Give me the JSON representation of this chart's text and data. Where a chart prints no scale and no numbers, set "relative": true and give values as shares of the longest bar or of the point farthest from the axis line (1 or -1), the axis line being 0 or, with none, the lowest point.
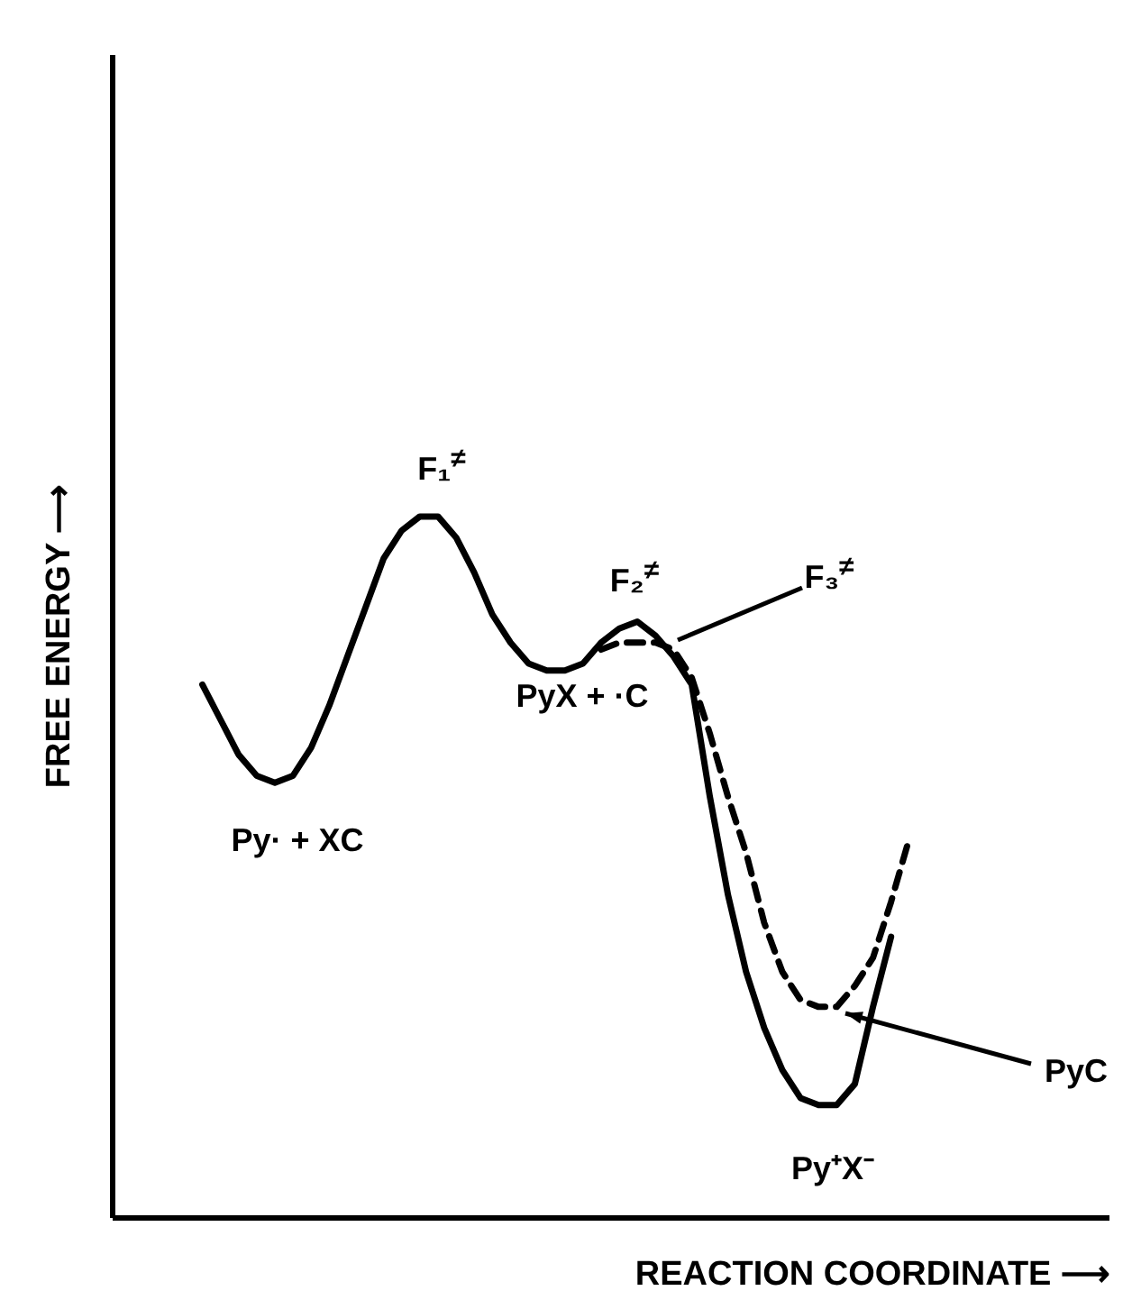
{
  "chart_data": {
    "type": "line",
    "relative": true,
    "xlabel": "REACTION COORDINATE ⟶",
    "ylabel": "FREE ENERGY ⟶",
    "categories": [
      null,
      null,
      null,
      null,
      null,
      null,
      null,
      null,
      null,
      null,
      null,
      null,
      null,
      null,
      null,
      null,
      null,
      null,
      null,
      null,
      null,
      null,
      null,
      null,
      null,
      null,
      null,
      null,
      null,
      null,
      null,
      null,
      null,
      null,
      null,
      null,
      null,
      null,
      null,
      null,
      null,
      null,
      null,
      null,
      null,
      null,
      null,
      null,
      null,
      null,
      null,
      null,
      null,
      null,
      null,
      null
    ],
    "series": [
      {
        "color": "#000000",
        "line_style": "solid",
        "values": [
          null,
          null,
          null,
          null,
          null,
          0.76,
          0.71,
          0.66,
          0.63,
          0.62,
          0.63,
          0.67,
          0.73,
          0.8,
          0.87,
          0.94,
          0.98,
          1,
          1.0,
          0.97,
          0.92,
          0.86,
          0.82,
          0.79,
          0.78,
          0.78,
          0.79,
          0.82,
          0.84,
          0.85,
          0.83,
          0.8,
          0.76,
          0.6,
          0.46,
          0.35,
          0.27,
          0.21,
          0.17,
          0.16,
          0.16,
          0.19,
          0.3,
          0.4,
          null,
          null,
          null,
          null,
          null,
          null,
          null,
          null,
          null,
          null,
          null,
          null
        ]
      },
      {
        "color": "#000000",
        "line_style": "dashed",
        "values": [
          null,
          null,
          null,
          null,
          null,
          null,
          null,
          null,
          null,
          null,
          null,
          null,
          null,
          null,
          null,
          null,
          null,
          null,
          null,
          null,
          null,
          null,
          null,
          null,
          null,
          null,
          null,
          0.81,
          0.82,
          0.82,
          0.82,
          0.81,
          0.77,
          0.69,
          0.6,
          0.52,
          0.42,
          0.35,
          0.31,
          0.3,
          0.3,
          0.33,
          0.37,
          0.45,
          0.54,
          null,
          null,
          null,
          null,
          null,
          null,
          null,
          null,
          null,
          null,
          null
        ]
      }
    ],
    "annotations": [
      "F₁$^{≠}$",
      "F₂$^{≠}$",
      "F₃$^{≠}$",
      "PyX + ·C",
      "Py· + XC",
      "PyC",
      "Py⁺X⁻"
    ]
  }
}
